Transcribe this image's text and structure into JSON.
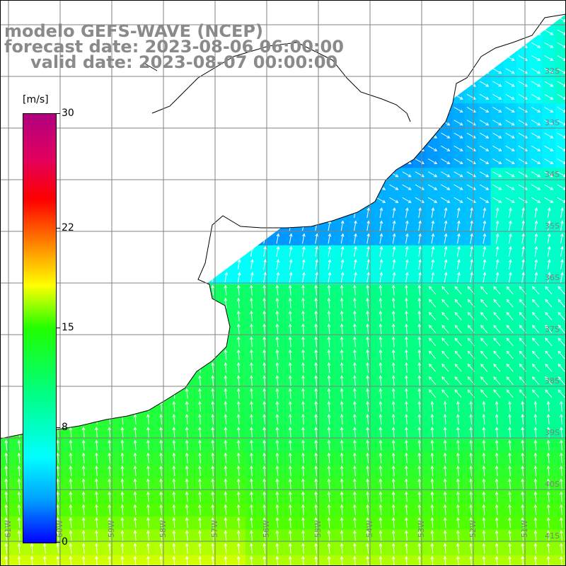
{
  "title": {
    "line1": "modelo GEFS-WAVE (NCEP)",
    "line2": "forecast date: 2023-08-06 06:00:00",
    "line3": "valid date: 2023-08-07 00:00:00"
  },
  "colorbar": {
    "units": "[m/s]",
    "ticks": [
      "30",
      "22",
      "15",
      "8",
      "0"
    ],
    "tick_values": [
      30,
      22,
      15,
      8,
      0
    ],
    "min": 0,
    "max": 30,
    "colors": [
      "#0000ff",
      "#00a0ff",
      "#00ffff",
      "#00ff80",
      "#20ff00",
      "#ffff00",
      "#ff8000",
      "#ff0000",
      "#b00080"
    ]
  },
  "map": {
    "lon_labels": [
      "61W",
      "60W",
      "59W",
      "58W",
      "57W",
      "56W",
      "55W",
      "54W",
      "53W",
      "52W",
      "51W"
    ],
    "lat_labels": [
      "32S",
      "33S",
      "34S",
      "35S",
      "36S",
      "37S",
      "38S",
      "39S",
      "40S",
      "41S"
    ],
    "land_color": "#ffffff",
    "grid_color": "#808080",
    "coast_color": "#000000",
    "arrow_color": "#ffffff"
  }
}
